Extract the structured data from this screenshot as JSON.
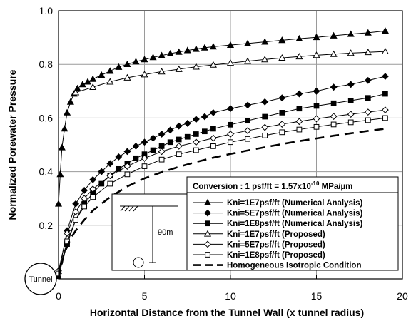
{
  "chart_data": {
    "type": "line",
    "xlabel": "Horizontal Distance from the Tunnel Wall (x tunnel radius)",
    "ylabel": "Normalized Porewater Pressure",
    "xlim": [
      0,
      20
    ],
    "ylim": [
      0,
      1.0
    ],
    "x_ticks": [
      "0",
      "5",
      "10",
      "15",
      "20"
    ],
    "y_ticks": [
      "0.2",
      "0.4",
      "0.6",
      "0.8",
      "1.0"
    ],
    "grid": true,
    "conversion_note": {
      "prefix": "Conversion : 1 psf/ft = 1.57x10",
      "exponent": "-10",
      "suffix": " MPa/µm"
    },
    "inset": {
      "depth_label": "90m"
    },
    "tunnel_label": "Tunnel",
    "legend_position": "bottom-right",
    "series": [
      {
        "name": "Kni=1E7psf/ft (Numerical Analysis)",
        "marker": "triangle",
        "filled": true,
        "dashed": false,
        "x": [
          0,
          0.1,
          0.2,
          0.35,
          0.5,
          0.7,
          0.9,
          1.1,
          1.4,
          1.7,
          2.0,
          2.5,
          3.0,
          3.5,
          4.0,
          4.5,
          5.0,
          5.5,
          6.0,
          6.5,
          7.0,
          7.5,
          8.0,
          8.5,
          9.0,
          10.0,
          11.0,
          12.0,
          13.0,
          14.0,
          15.0,
          16.0,
          17.0,
          18.0,
          19.0
        ],
        "y": [
          0.28,
          0.39,
          0.49,
          0.56,
          0.62,
          0.66,
          0.69,
          0.71,
          0.725,
          0.735,
          0.745,
          0.76,
          0.775,
          0.79,
          0.8,
          0.81,
          0.818,
          0.826,
          0.833,
          0.84,
          0.846,
          0.852,
          0.857,
          0.862,
          0.866,
          0.872,
          0.878,
          0.884,
          0.89,
          0.896,
          0.901,
          0.907,
          0.913,
          0.918,
          0.925
        ]
      },
      {
        "name": "Kni=5E7psf/ft (Numerical Analysis)",
        "marker": "diamond",
        "filled": true,
        "dashed": false,
        "x": [
          0,
          0.5,
          1.0,
          1.5,
          2.0,
          2.5,
          3.0,
          3.5,
          4.0,
          4.5,
          5.0,
          5.5,
          6.0,
          6.5,
          7.0,
          7.5,
          8.0,
          8.5,
          9.0,
          10.0,
          11.0,
          12.0,
          13.0,
          14.0,
          15.0,
          16.0,
          17.0,
          18.0,
          19.0
        ],
        "y": [
          0.02,
          0.18,
          0.28,
          0.33,
          0.37,
          0.4,
          0.43,
          0.455,
          0.475,
          0.495,
          0.51,
          0.525,
          0.54,
          0.555,
          0.57,
          0.58,
          0.595,
          0.605,
          0.62,
          0.635,
          0.648,
          0.66,
          0.675,
          0.69,
          0.7,
          0.715,
          0.725,
          0.74,
          0.755
        ]
      },
      {
        "name": "Kni=1E8psf/ft (Numerical Analysis)",
        "marker": "square",
        "filled": true,
        "dashed": false,
        "x": [
          0,
          0.5,
          1.0,
          1.5,
          2.0,
          2.5,
          3.0,
          3.5,
          4.0,
          4.5,
          5.0,
          5.5,
          6.0,
          6.5,
          7.0,
          7.5,
          8.0,
          8.5,
          9.0,
          10.0,
          11.0,
          12.0,
          13.0,
          14.0,
          15.0,
          16.0,
          17.0,
          18.0,
          19.0
        ],
        "y": [
          0.01,
          0.13,
          0.22,
          0.28,
          0.32,
          0.355,
          0.385,
          0.41,
          0.43,
          0.45,
          0.465,
          0.48,
          0.495,
          0.51,
          0.52,
          0.53,
          0.54,
          0.55,
          0.56,
          0.575,
          0.59,
          0.605,
          0.62,
          0.635,
          0.645,
          0.655,
          0.665,
          0.675,
          0.69
        ]
      },
      {
        "name": "Kni=1E7psf/ft (Proposed)",
        "marker": "triangle",
        "filled": false,
        "dashed": false,
        "x": [
          1.0,
          2.0,
          3.0,
          4.0,
          5.0,
          6.0,
          7.0,
          8.0,
          9.0,
          10.0,
          11.0,
          12.0,
          13.0,
          14.0,
          15.0,
          16.0,
          17.0,
          18.0,
          19.0
        ],
        "y": [
          0.695,
          0.715,
          0.735,
          0.75,
          0.762,
          0.773,
          0.782,
          0.791,
          0.798,
          0.805,
          0.812,
          0.818,
          0.824,
          0.829,
          0.834,
          0.838,
          0.842,
          0.845,
          0.848
        ]
      },
      {
        "name": "Kni=5E7psf/ft (Proposed)",
        "marker": "diamond",
        "filled": false,
        "dashed": false,
        "x": [
          0,
          0.5,
          1.0,
          1.5,
          2.0,
          3.0,
          4.0,
          5.0,
          6.0,
          7.0,
          8.0,
          9.0,
          10.0,
          11.0,
          12.0,
          13.0,
          14.0,
          15.0,
          16.0,
          17.0,
          18.0,
          19.0
        ],
        "y": [
          0.03,
          0.17,
          0.25,
          0.3,
          0.335,
          0.385,
          0.42,
          0.45,
          0.475,
          0.495,
          0.51,
          0.525,
          0.54,
          0.553,
          0.565,
          0.577,
          0.587,
          0.597,
          0.606,
          0.614,
          0.622,
          0.63
        ]
      },
      {
        "name": "Kni=1E8psf/ft (Proposed)",
        "marker": "square",
        "filled": false,
        "dashed": false,
        "x": [
          0,
          0.5,
          1.0,
          1.5,
          2.0,
          3.0,
          4.0,
          5.0,
          6.0,
          7.0,
          8.0,
          9.0,
          10.0,
          11.0,
          12.0,
          13.0,
          14.0,
          15.0,
          16.0,
          17.0,
          18.0,
          19.0
        ],
        "y": [
          0.02,
          0.14,
          0.22,
          0.27,
          0.305,
          0.355,
          0.39,
          0.42,
          0.445,
          0.465,
          0.48,
          0.495,
          0.51,
          0.522,
          0.535,
          0.547,
          0.557,
          0.567,
          0.576,
          0.584,
          0.592,
          0.6
        ]
      },
      {
        "name": "Homogeneous Isotropic Condition",
        "marker": "none",
        "filled": false,
        "dashed": true,
        "x": [
          0,
          0.3,
          0.7,
          1.0,
          1.5,
          2.0,
          3.0,
          4.0,
          5.0,
          6.0,
          7.0,
          8.0,
          9.0,
          10.0,
          11.0,
          12.0,
          13.0,
          14.0,
          15.0,
          16.0,
          17.0,
          18.0,
          19.0
        ],
        "y": [
          0.0,
          0.09,
          0.15,
          0.18,
          0.22,
          0.255,
          0.305,
          0.345,
          0.375,
          0.398,
          0.418,
          0.436,
          0.452,
          0.466,
          0.479,
          0.491,
          0.503,
          0.514,
          0.524,
          0.534,
          0.543,
          0.552,
          0.56
        ]
      }
    ]
  }
}
